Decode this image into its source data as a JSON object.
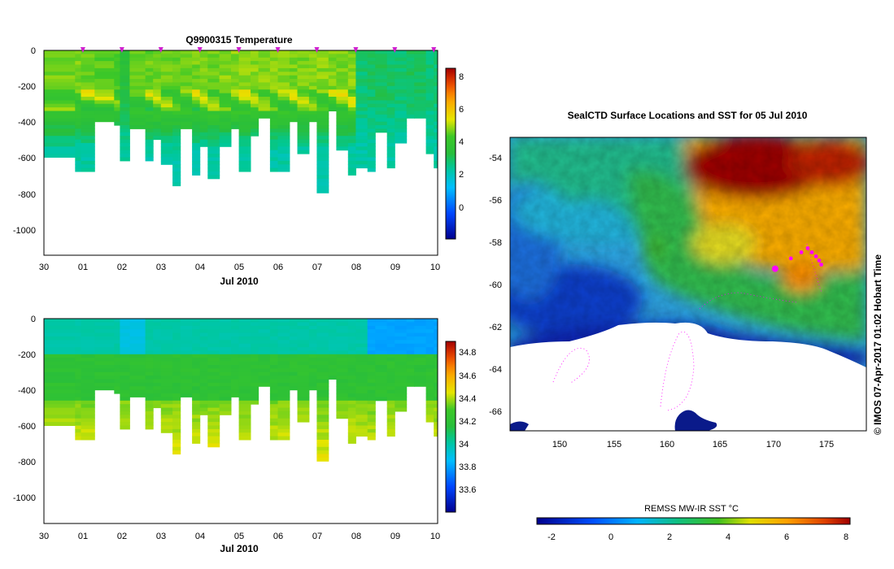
{
  "temperature_panel": {
    "title": "Q9900315  Temperature",
    "x_ticks": [
      "30",
      "01",
      "02",
      "03",
      "04",
      "05",
      "06",
      "07",
      "08",
      "09",
      "10"
    ],
    "x_label": "Jul 2010",
    "y_ticks": [
      "0",
      "-200",
      "-400",
      "-600",
      "-800",
      "-1000"
    ],
    "colorbar_ticks": [
      "8",
      "6",
      "4",
      "2",
      "0"
    ]
  },
  "salinity_panel": {
    "x_ticks": [
      "30",
      "01",
      "02",
      "03",
      "04",
      "05",
      "06",
      "07",
      "08",
      "09",
      "10"
    ],
    "x_label": "Jul 2010",
    "y_ticks": [
      "0",
      "-200",
      "-400",
      "-600",
      "-800",
      "-1000"
    ],
    "colorbar_ticks": [
      "34.8",
      "34.6",
      "34.4",
      "34.2",
      "34",
      "33.8",
      "33.6"
    ]
  },
  "map_panel": {
    "title": "SealCTD Surface Locations and SST for 05 Jul 2010",
    "lat_ticks": [
      "-54",
      "-56",
      "-58",
      "-60",
      "-62",
      "-64",
      "-66"
    ],
    "lon_ticks": [
      "150",
      "155",
      "160",
      "165",
      "170",
      "175"
    ],
    "colorbar_label": "REMSS MW-IR SST °C",
    "colorbar_ticks": [
      "-2",
      "0",
      "2",
      "4",
      "6",
      "8"
    ]
  },
  "credit": "© IMOS 07-Apr-2017 01:02 Hobart Time",
  "chart_data": [
    {
      "type": "heatmap",
      "title": "Q9900315  Temperature",
      "xlabel": "Jul 2010",
      "ylabel": "",
      "x_range_days": [
        0,
        10.1
      ],
      "ylim": [
        -1150,
        0
      ],
      "clim": [
        -1.7,
        8.7
      ],
      "profile_times": [
        0.0,
        0.8,
        0.95,
        1.3,
        1.8,
        1.95,
        2.2,
        2.6,
        2.8,
        3.0,
        3.3,
        3.5,
        3.8,
        4.0,
        4.2,
        4.5,
        4.8,
        5.0,
        5.3,
        5.5,
        5.8,
        6.0,
        6.3,
        6.5,
        6.8,
        7.0,
        7.3,
        7.5,
        7.8,
        8.0,
        8.3,
        8.5,
        8.8,
        9.0,
        9.3,
        9.5,
        9.8,
        10.0
      ],
      "profile_max_depth": [
        -590,
        -680,
        -670,
        -400,
        -410,
        -620,
        -440,
        -620,
        -500,
        -640,
        -760,
        -440,
        -690,
        -530,
        -710,
        -530,
        -440,
        -680,
        -470,
        -380,
        -680,
        -680,
        -400,
        -580,
        -400,
        -800,
        -330,
        -560,
        -700,
        -660,
        -680,
        -450,
        -650,
        -520,
        -380,
        -380,
        -570,
        -650
      ],
      "surface_temp": [
        4.9,
        4.9,
        4.8,
        4.7,
        4.6,
        3.6,
        4.7,
        4.8,
        4.9,
        4.8,
        4.8,
        4.9,
        4.9,
        4.9,
        4.9,
        5.0,
        5.0,
        5.0,
        5.0,
        5.0,
        5.0,
        5.0,
        4.9,
        4.9,
        5.0,
        5.0,
        4.9,
        4.9,
        5.0,
        3.0,
        3.1,
        3.2,
        3.1,
        3.0,
        3.2,
        3.1,
        3.0,
        3.0
      ],
      "deep_temp": 2.5,
      "time_markers": [
        "01",
        "02",
        "03",
        "04",
        "05",
        "06",
        "07",
        "08",
        "09",
        "10"
      ]
    },
    {
      "type": "heatmap",
      "title": "",
      "xlabel": "Jul 2010",
      "ylabel": "",
      "x_range_days": [
        0,
        10.1
      ],
      "ylim": [
        -1150,
        0
      ],
      "clim": [
        33.45,
        34.95
      ],
      "surface_salinity": 34.05,
      "mid_salinity": 34.25,
      "deep_salinity": 34.4,
      "late_surface_salinity": 33.85
    },
    {
      "type": "heatmap",
      "title": "SealCTD Surface Locations and SST for 05 Jul 2010",
      "xlabel": "",
      "ylabel": "",
      "lon_range": [
        145,
        179
      ],
      "lat_range": [
        -67.3,
        -53.0
      ],
      "colorbar": {
        "label": "REMSS MW-IR SST °C",
        "range": [
          -2.6,
          8.3
        ]
      },
      "seal_positions": [
        {
          "lon": 170.3,
          "lat": -59.4
        },
        {
          "lon": 171.8,
          "lat": -58.9
        },
        {
          "lon": 172.8,
          "lat": -58.6
        },
        {
          "lon": 173.4,
          "lat": -58.4
        },
        {
          "lon": 173.8,
          "lat": -58.6
        },
        {
          "lon": 174.2,
          "lat": -58.8
        },
        {
          "lon": 174.5,
          "lat": -59.0
        },
        {
          "lon": 174.7,
          "lat": -59.2
        }
      ]
    }
  ]
}
